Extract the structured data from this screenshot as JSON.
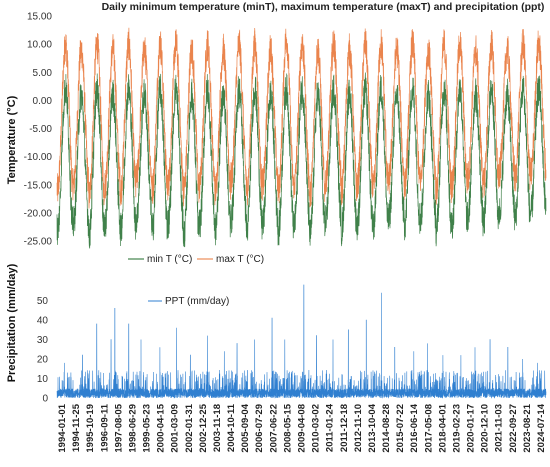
{
  "chart_data": [
    {
      "type": "line",
      "title": "Daily minimum temperature (minT), maximum temperature (maxT) and precipitation (ppt)",
      "xlabel": "",
      "ylabel": "Temperature (°C)",
      "ylim": [
        -25,
        15
      ],
      "yticks": [
        "15.00",
        "10.00",
        "5.00",
        "0.00",
        "-5.00",
        "-10.00",
        "-15.00",
        "-20.00",
        "-25.00"
      ],
      "x_start": "1994-01-01",
      "x_end": "2024-12-31",
      "grid": false,
      "legend": "bottom-center",
      "series": [
        {
          "name": "min T (°C)",
          "color": "#1e6b2a",
          "annual_cycle": {
            "summer_peak": [
              2,
              1,
              2,
              1,
              2,
              1,
              2,
              2,
              1,
              2,
              1,
              2,
              2,
              1,
              2,
              2,
              1,
              2,
              1,
              2,
              2,
              1,
              2,
              1,
              2,
              2,
              1,
              2,
              1,
              2,
              2
            ],
            "winter_trough": [
              -23,
              -22,
              -24,
              -22,
              -23,
              -21,
              -23,
              -22,
              -24,
              -22,
              -23,
              -21,
              -23,
              -22,
              -23,
              -22,
              -24,
              -21,
              -23,
              -22,
              -23,
              -21,
              -22,
              -21,
              -23,
              -22,
              -21,
              -22,
              -20,
              -21,
              -20
            ]
          }
        },
        {
          "name": "max T (°C)",
          "color": "#e8773a",
          "annual_cycle": {
            "summer_peak": [
              10,
              9,
              10,
              9,
              10,
              9,
              10,
              10,
              9,
              10,
              9,
              10,
              10,
              9,
              11,
              10,
              9,
              10,
              9,
              10,
              10,
              9,
              10,
              9,
              10,
              10,
              9,
              10,
              9,
              10,
              10
            ],
            "winter_trough": [
              -16,
              -15,
              -17,
              -15,
              -16,
              -14,
              -16,
              -15,
              -16,
              -15,
              -16,
              -14,
              -16,
              -15,
              -16,
              -15,
              -17,
              -14,
              -16,
              -15,
              -16,
              -14,
              -15,
              -14,
              -16,
              -15,
              -14,
              -15,
              -13,
              -14,
              -13
            ]
          }
        }
      ]
    },
    {
      "type": "line",
      "title": "",
      "xlabel": "",
      "ylabel": "Precipitation (mm/day)",
      "ylim": [
        0,
        60
      ],
      "yticks": [
        "0",
        "10",
        "20",
        "30",
        "40",
        "50"
      ],
      "legend": "top-left",
      "x_tick_labels": [
        "1994-01-01",
        "1994-11-25",
        "1995-10-19",
        "1996-09-11",
        "1997-08-05",
        "1998-06-29",
        "1999-05-23",
        "2000-04-15",
        "2001-03-09",
        "2002-01-31",
        "2002-12-25",
        "2003-11-18",
        "2004-10-11",
        "2005-09-04",
        "2006-07-29",
        "2007-06-22",
        "2008-05-15",
        "2009-04-08",
        "2010-03-02",
        "2011-01-24",
        "2011-12-18",
        "2012-11-10",
        "2013-10-04",
        "2014-08-28",
        "2015-07-22",
        "2016-06-14",
        "2017-05-08",
        "2018-04-01",
        "2019-02-23",
        "2020-01-17",
        "2020-12-10",
        "2021-11-03",
        "2022-09-27",
        "2023-08-21",
        "2024-07-14"
      ],
      "series": [
        {
          "name": "PPT (mm/day)",
          "color": "#2f7fd0",
          "typical_range": [
            0,
            8
          ],
          "peaks": [
            {
              "x": "1994-06-20",
              "y": 18
            },
            {
              "x": "1995-08-15",
              "y": 22
            },
            {
              "x": "1996-07-10",
              "y": 38
            },
            {
              "x": "1997-06-05",
              "y": 30
            },
            {
              "x": "1997-09-01",
              "y": 46
            },
            {
              "x": "1998-07-20",
              "y": 38
            },
            {
              "x": "1999-05-01",
              "y": 30
            },
            {
              "x": "2000-07-10",
              "y": 26
            },
            {
              "x": "2001-08-01",
              "y": 36
            },
            {
              "x": "2002-06-15",
              "y": 22
            },
            {
              "x": "2003-07-20",
              "y": 32
            },
            {
              "x": "2004-08-10",
              "y": 24
            },
            {
              "x": "2005-06-01",
              "y": 28
            },
            {
              "x": "2006-07-15",
              "y": 30
            },
            {
              "x": "2007-08-20",
              "y": 41
            },
            {
              "x": "2008-06-10",
              "y": 30
            },
            {
              "x": "2009-08-25",
              "y": 58
            },
            {
              "x": "2010-06-15",
              "y": 32
            },
            {
              "x": "2011-07-01",
              "y": 30
            },
            {
              "x": "2012-06-20",
              "y": 35
            },
            {
              "x": "2013-08-10",
              "y": 40
            },
            {
              "x": "2014-07-25",
              "y": 54
            },
            {
              "x": "2015-06-01",
              "y": 26
            },
            {
              "x": "2016-08-15",
              "y": 24
            },
            {
              "x": "2017-07-01",
              "y": 28
            },
            {
              "x": "2018-06-20",
              "y": 22
            },
            {
              "x": "2019-08-10",
              "y": 22
            },
            {
              "x": "2020-07-01",
              "y": 26
            },
            {
              "x": "2021-06-15",
              "y": 30
            },
            {
              "x": "2022-08-01",
              "y": 26
            },
            {
              "x": "2023-07-10",
              "y": 20
            },
            {
              "x": "2024-06-20",
              "y": 18
            }
          ]
        }
      ]
    }
  ]
}
